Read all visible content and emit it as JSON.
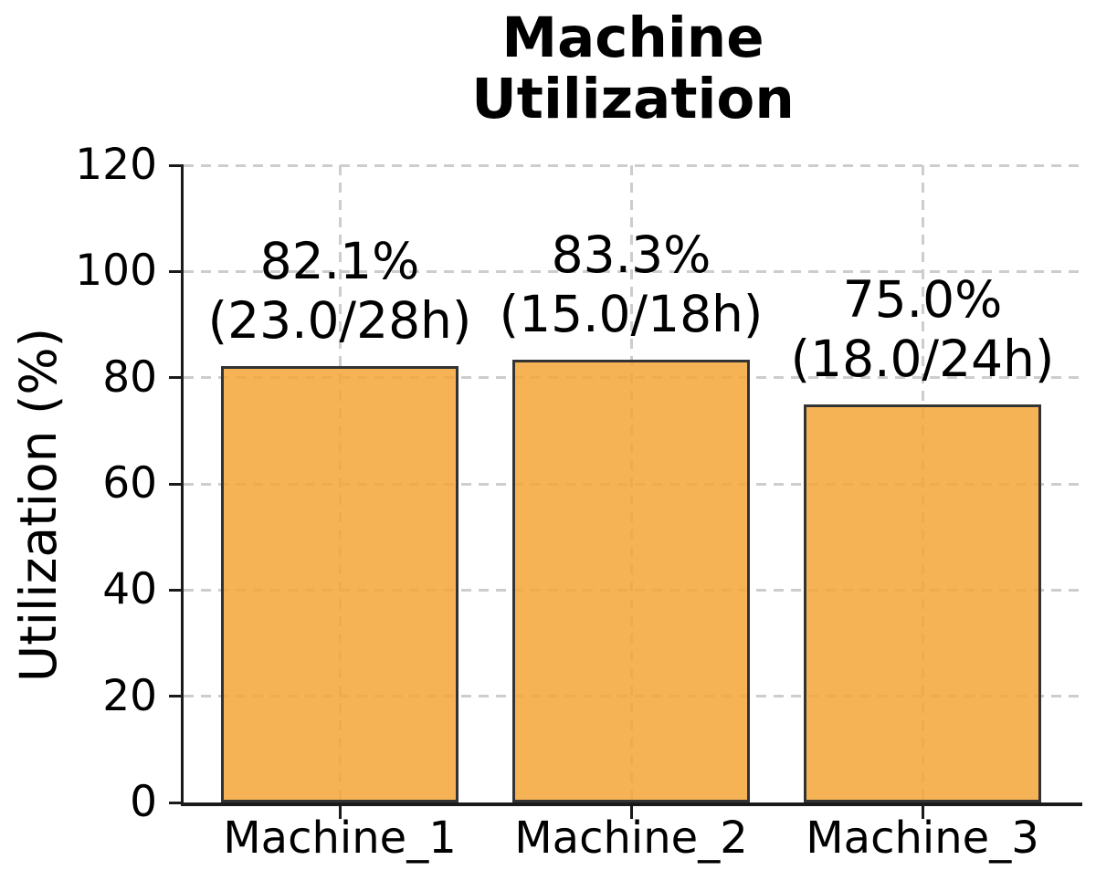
{
  "chart_data": {
    "type": "bar",
    "title": "Machine Utilization",
    "title_lines": [
      "Machine",
      "Utilization"
    ],
    "ylabel": "Utilization (%)",
    "xlabel": "",
    "categories": [
      "Machine_1",
      "Machine_2",
      "Machine_3"
    ],
    "values": [
      82.1,
      83.3,
      75.0
    ],
    "annotations": [
      {
        "percent": "82.1%",
        "hours": "(23.0/28h)"
      },
      {
        "percent": "83.3%",
        "hours": "(15.0/18h)"
      },
      {
        "percent": "75.0%",
        "hours": "(18.0/24h)"
      }
    ],
    "ylim": [
      0,
      120
    ],
    "yticks": [
      0,
      20,
      40,
      60,
      80,
      100,
      120
    ],
    "grid": true,
    "legend": "none",
    "colors": {
      "bar_fill": "#F3A638",
      "bar_edge": "#333333",
      "grid": "#cdcdcd",
      "spine": "#1a1a1a",
      "text": "#000000"
    }
  }
}
